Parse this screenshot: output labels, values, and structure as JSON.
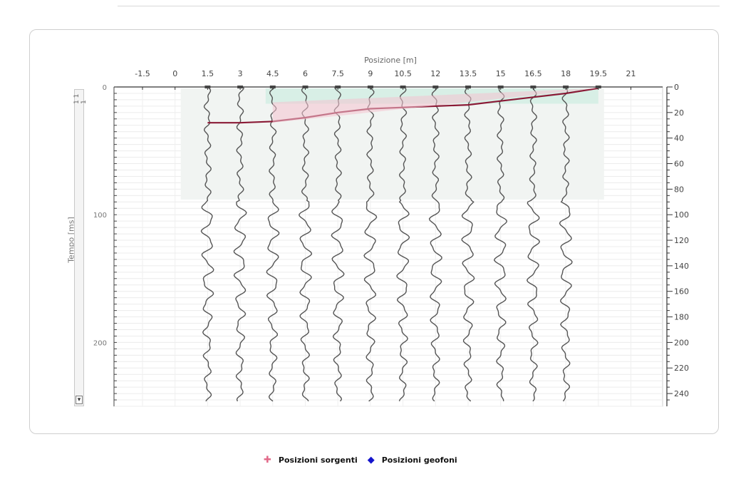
{
  "chart_data": {
    "type": "line",
    "xlabel": "Posizione [m]",
    "ylabel": "Tempo [ms]",
    "x_ticks": [
      "-1.5",
      "0",
      "1.5",
      "3",
      "4.5",
      "6",
      "7.5",
      "9",
      "10.5",
      "12",
      "13.5",
      "15",
      "16.5",
      "18",
      "19.5",
      "21"
    ],
    "xlim": [
      -1.5,
      21
    ],
    "ylim": [
      0,
      250
    ],
    "y_ticks_right": [
      "0",
      "20",
      "40",
      "60",
      "80",
      "100",
      "120",
      "140",
      "160",
      "180",
      "200",
      "220",
      "240"
    ],
    "y_ticks_left": [
      "0",
      "100",
      "200"
    ],
    "grid": true,
    "legend_position": "bottom",
    "series": [
      {
        "name": "Posizioni sorgenti",
        "color": "#e26a8a",
        "marker": "plus"
      },
      {
        "name": "Posizioni geofoni",
        "color": "#1414cc",
        "marker": "diamond"
      }
    ],
    "trace_positions": [
      1.5,
      3,
      4.5,
      6,
      7.5,
      9,
      10.5,
      12,
      13.5,
      15,
      16.5,
      18
    ],
    "first_breaks": {
      "x": [
        1.5,
        3,
        4.5,
        6,
        7.5,
        9,
        10.5,
        12,
        13.5,
        15,
        16.5,
        18,
        19.5
      ],
      "t": [
        28,
        28,
        27,
        24,
        20,
        17,
        16,
        15,
        14,
        11,
        8,
        5,
        1
      ]
    }
  },
  "scrollbar": {
    "top_label": "1 1 1",
    "button_glyph": "▾"
  }
}
